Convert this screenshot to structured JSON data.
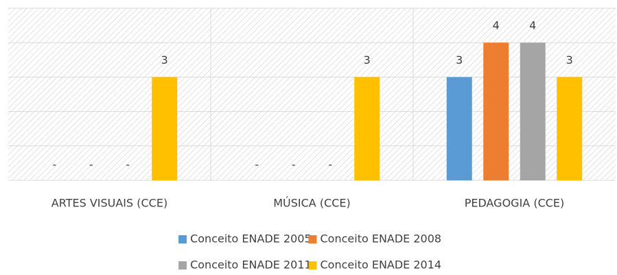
{
  "chart_data": {
    "type": "bar",
    "categories": [
      "ARTES VISUAIS (CCE)",
      "MÚSICA (CCE)",
      "PEDAGOGIA (CCE)"
    ],
    "series": [
      {
        "name": "Conceito ENADE 2005",
        "color": "#5b9bd5",
        "values": [
          null,
          null,
          3
        ],
        "value_labels": [
          "-",
          "-",
          "3"
        ]
      },
      {
        "name": "Conceito ENADE 2008",
        "color": "#ed7d31",
        "values": [
          null,
          null,
          4
        ],
        "value_labels": [
          "-",
          "-",
          "4"
        ]
      },
      {
        "name": "Conceito ENADE 2011",
        "color": "#a5a5a5",
        "values": [
          null,
          null,
          4
        ],
        "value_labels": [
          "-",
          "-",
          "4"
        ]
      },
      {
        "name": "Conceito ENADE 2014",
        "color": "#ffc000",
        "values": [
          3,
          3,
          3
        ]
      }
    ],
    "ylim": [
      0,
      5
    ],
    "yticks": [
      0,
      1,
      2,
      3,
      4,
      5
    ],
    "grid": true,
    "legend": "bottom"
  }
}
